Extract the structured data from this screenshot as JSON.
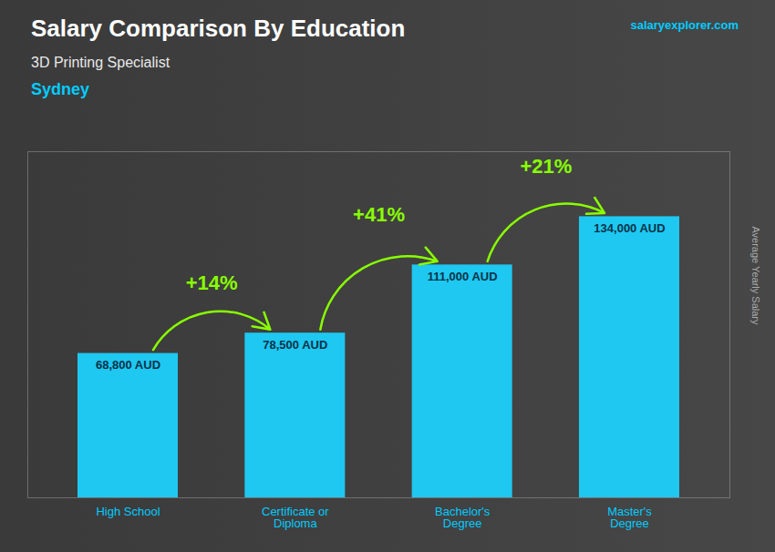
{
  "chart_data": {
    "type": "bar",
    "title": "Salary Comparison By Education",
    "subtitle": "3D Printing Specialist",
    "city": "Sydney",
    "watermark": [
      "salary",
      "explorer",
      ".com"
    ],
    "ylabel": "Average Yearly Salary",
    "categories": [
      "High School",
      "Certificate or\nDiploma",
      "Bachelor's\nDegree",
      "Master's\nDegree"
    ],
    "values": [
      68800,
      78500,
      111000,
      134000
    ],
    "value_labels": [
      "68,800 AUD",
      "78,500 AUD",
      "111,000 AUD",
      "134,000 AUD"
    ],
    "data_labels": true,
    "color": "#1ec8f0",
    "ylim": [
      0,
      165000
    ],
    "tick_labels": "x",
    "grid": false,
    "annotations": [
      {
        "text": "+14%",
        "from": "High School",
        "to": "Certificate or\nDiploma"
      },
      {
        "text": "+41%",
        "from": "Certificate or\nDiploma",
        "to": "Bachelor's\nDegree"
      },
      {
        "text": "+21%",
        "from": "Bachelor's\nDegree",
        "to": "Master's\nDegree"
      }
    ]
  }
}
